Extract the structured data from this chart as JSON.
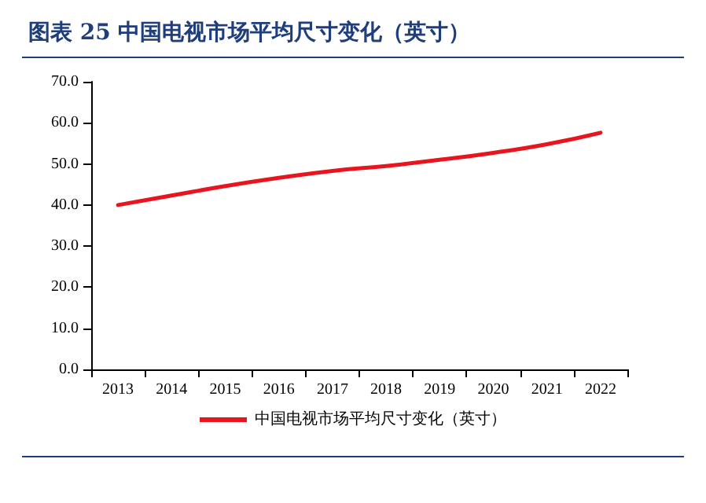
{
  "chart_data": {
    "type": "line",
    "title": "图表 25  中国电视市场平均尺寸变化（英寸）",
    "categories": [
      "2013",
      "2014",
      "2015",
      "2016",
      "2017",
      "2018",
      "2019",
      "2020",
      "2021",
      "2022"
    ],
    "series": [
      {
        "name": "中国电视市场平均尺寸变化（英寸）",
        "color": "#e8141e",
        "values": [
          40.0,
          42.3,
          44.6,
          46.6,
          48.3,
          49.5,
          51.0,
          52.7,
          54.8,
          57.6
        ]
      }
    ],
    "ylim": [
      0,
      70
    ],
    "yticks": [
      {
        "value": 0,
        "label": "0.0"
      },
      {
        "value": 10,
        "label": "10.0"
      },
      {
        "value": 20,
        "label": "20.0"
      },
      {
        "value": 30,
        "label": "30.0"
      },
      {
        "value": 40,
        "label": "40.0"
      },
      {
        "value": 50,
        "label": "50.0"
      },
      {
        "value": 60,
        "label": "60.0"
      },
      {
        "value": 70,
        "label": "70.0"
      }
    ],
    "grid": false,
    "legend": "bottom",
    "marker": "none",
    "line_style": "solid"
  }
}
